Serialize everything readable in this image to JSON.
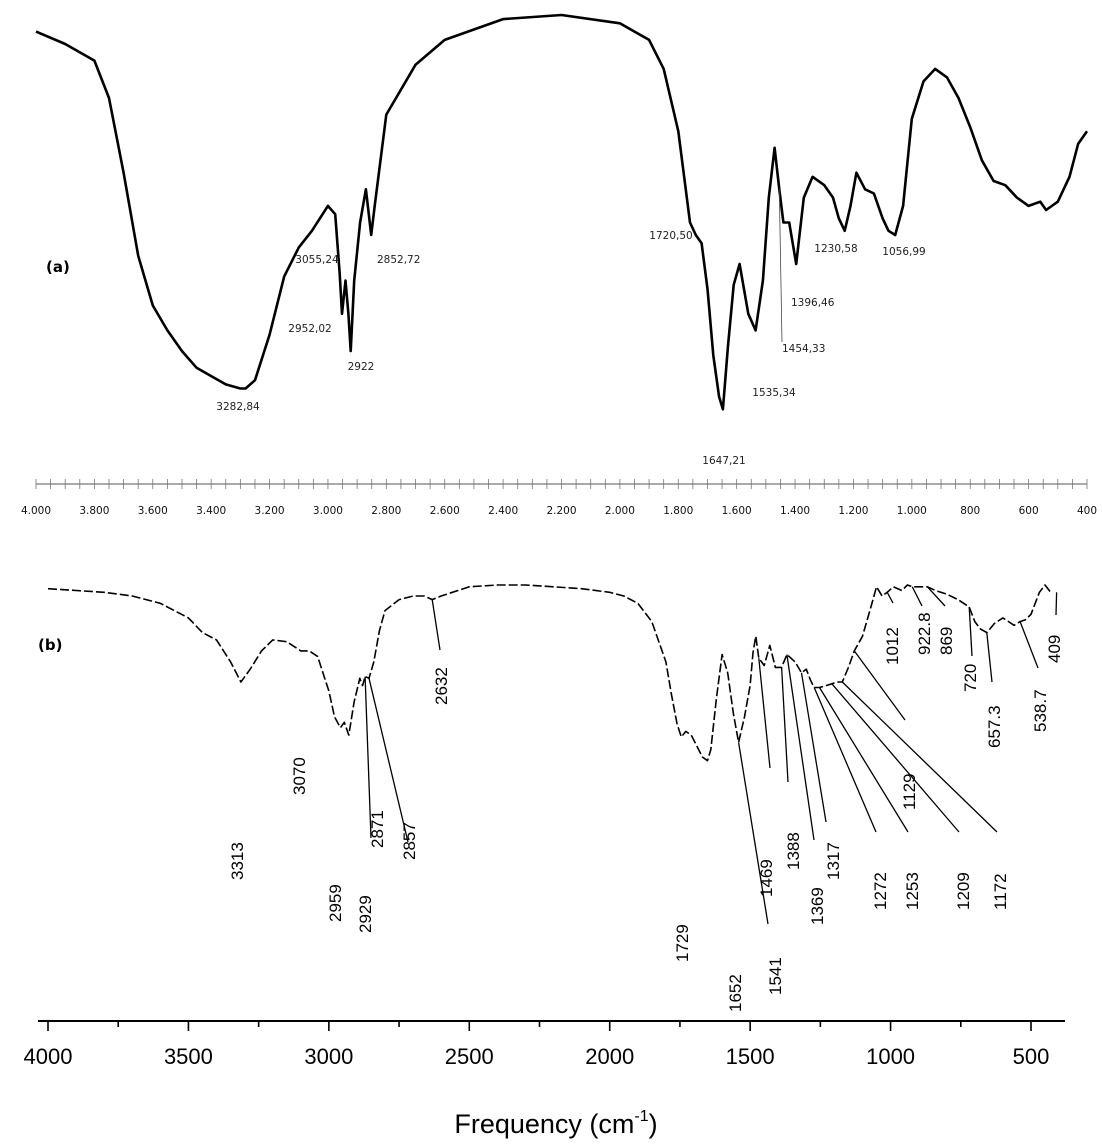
{
  "chart_data": [
    {
      "id": "a",
      "type": "line",
      "panel_label": "(a)",
      "xlim": [
        4000,
        400
      ],
      "x_ticks": [
        4000,
        3800,
        3600,
        3400,
        3200,
        3000,
        2800,
        2600,
        2400,
        2200,
        2000,
        1800,
        1600,
        1400,
        1200,
        1000,
        800,
        600,
        400
      ],
      "x_tick_labels": [
        "4.000",
        "3.800",
        "3.600",
        "3.400",
        "3.200",
        "3.000",
        "2.800",
        "2.600",
        "2.400",
        "2.200",
        "2.000",
        "1.800",
        "1.600",
        "1.400",
        "1.200",
        "1.000",
        "800",
        "600",
        "400"
      ],
      "y_scale": "relative transmittance (0-100, no axis shown)",
      "series": [
        {
          "x": [
            4000,
            3900,
            3800,
            3750,
            3700,
            3650,
            3600,
            3550,
            3500,
            3450,
            3400,
            3350,
            3300,
            3282,
            3250,
            3200,
            3150,
            3100,
            3055,
            3000,
            2975,
            2960,
            2952,
            2940,
            2930,
            2922,
            2910,
            2890,
            2870,
            2860,
            2852,
            2840,
            2800,
            2700,
            2600,
            2400,
            2200,
            2000,
            1900,
            1850,
            1800,
            1760,
            1740,
            1730,
            1720,
            1700,
            1680,
            1660,
            1647,
            1630,
            1610,
            1590,
            1560,
            1535,
            1510,
            1490,
            1470,
            1454,
            1440,
            1420,
            1396,
            1370,
            1340,
            1300,
            1270,
            1250,
            1230,
            1210,
            1190,
            1160,
            1130,
            1100,
            1080,
            1057,
            1030,
            1000,
            960,
            920,
            880,
            840,
            800,
            760,
            720,
            680,
            640,
            600,
            560,
            540,
            500,
            460,
            430,
            400
          ],
          "y": [
            96,
            93,
            89,
            80,
            62,
            42,
            30,
            24,
            19,
            15,
            13,
            11,
            10,
            10,
            12,
            23,
            37,
            44,
            48,
            54,
            52,
            38,
            28,
            36,
            28,
            19,
            36,
            50,
            58,
            52,
            47,
            54,
            76,
            88,
            94,
            99,
            100,
            98,
            94,
            87,
            72,
            50,
            47,
            46,
            45,
            34,
            18,
            8,
            5,
            20,
            35,
            40,
            28,
            24,
            36,
            56,
            68,
            58,
            50,
            50,
            40,
            56,
            61,
            59,
            56,
            51,
            48,
            54,
            62,
            58,
            57,
            51,
            48,
            47,
            54,
            75,
            84,
            87,
            85,
            80,
            73,
            65,
            60,
            59,
            56,
            54,
            55,
            53,
            55,
            61,
            69,
            72
          ]
        }
      ],
      "annotations": [
        {
          "text": "3282,84",
          "x": 3282
        },
        {
          "text": "3055,24",
          "x": 3055
        },
        {
          "text": "2952,02",
          "x": 2952
        },
        {
          "text": "2922",
          "x": 2922
        },
        {
          "text": "2852,72",
          "x": 2852
        },
        {
          "text": "1720,50",
          "x": 1720
        },
        {
          "text": "1647,21",
          "x": 1647
        },
        {
          "text": "1535,34",
          "x": 1535
        },
        {
          "text": "1454,33",
          "x": 1454
        },
        {
          "text": "1396,46",
          "x": 1396
        },
        {
          "text": "1230,58",
          "x": 1230
        },
        {
          "text": "1056,99",
          "x": 1057
        }
      ]
    },
    {
      "id": "b",
      "type": "line",
      "panel_label": "(b)",
      "xlabel_main": "Frequency (cm",
      "xlabel_sup": "-1",
      "xlabel_end": ")",
      "xlim": [
        4000,
        430
      ],
      "x_ticks": [
        4000,
        3500,
        3000,
        2500,
        2000,
        1500,
        1000,
        500
      ],
      "x_tick_labels": [
        "4000",
        "3500",
        "3000",
        "2500",
        "2000",
        "1500",
        "1000",
        "500"
      ],
      "y_scale": "relative transmittance (0-100, no axis shown)",
      "series": [
        {
          "x": [
            4000,
            3900,
            3800,
            3700,
            3600,
            3500,
            3450,
            3400,
            3350,
            3313,
            3280,
            3240,
            3200,
            3150,
            3100,
            3070,
            3040,
            3000,
            2980,
            2959,
            2945,
            2929,
            2910,
            2890,
            2880,
            2871,
            2857,
            2840,
            2820,
            2800,
            2750,
            2700,
            2660,
            2632,
            2600,
            2500,
            2400,
            2300,
            2200,
            2100,
            2000,
            1950,
            1900,
            1850,
            1800,
            1780,
            1760,
            1745,
            1729,
            1710,
            1690,
            1670,
            1652,
            1640,
            1620,
            1600,
            1580,
            1560,
            1541,
            1520,
            1500,
            1490,
            1480,
            1469,
            1450,
            1430,
            1410,
            1388,
            1369,
            1340,
            1317,
            1300,
            1285,
            1272,
            1253,
            1230,
            1209,
            1190,
            1172,
            1150,
            1129,
            1100,
            1070,
            1050,
            1030,
            1012,
            990,
            960,
            940,
            922.8,
            900,
            869,
            840,
            800,
            760,
            720,
            700,
            680,
            657.3,
            630,
            600,
            560,
            538.7,
            520,
            500,
            470,
            450,
            430
          ],
          "y": [
            98,
            97,
            96,
            94,
            90,
            82,
            74,
            70,
            58,
            47,
            54,
            64,
            70,
            69,
            64,
            64,
            61,
            42,
            28,
            22,
            25,
            18,
            36,
            49,
            45,
            50,
            49,
            58,
            75,
            86,
            92,
            94,
            94,
            92,
            94,
            99,
            100,
            100,
            99,
            98,
            96,
            94,
            90,
            80,
            58,
            40,
            24,
            17,
            20,
            18,
            12,
            6,
            4,
            10,
            38,
            62,
            52,
            30,
            14,
            28,
            45,
            63,
            72,
            60,
            56,
            67,
            55,
            55,
            62,
            58,
            52,
            54,
            48,
            44,
            44,
            45,
            46,
            47,
            47,
            55,
            64,
            72,
            88,
            99,
            94,
            96,
            99,
            97,
            100,
            99,
            99,
            99,
            97,
            95,
            92,
            88,
            80,
            76,
            74,
            79,
            82,
            78,
            80,
            81,
            84,
            96,
            100,
            96
          ]
        }
      ],
      "annotations": [
        {
          "text": "3313",
          "x": 3313
        },
        {
          "text": "3070",
          "x": 3070
        },
        {
          "text": "2959",
          "x": 2959
        },
        {
          "text": "2929",
          "x": 2929
        },
        {
          "text": "2871",
          "x": 2871
        },
        {
          "text": "2857",
          "x": 2857
        },
        {
          "text": "2632",
          "x": 2632
        },
        {
          "text": "1729",
          "x": 1729
        },
        {
          "text": "1652",
          "x": 1652
        },
        {
          "text": "1541",
          "x": 1541
        },
        {
          "text": "1469",
          "x": 1469
        },
        {
          "text": "1388",
          "x": 1388
        },
        {
          "text": "1369",
          "x": 1369
        },
        {
          "text": "1317",
          "x": 1317
        },
        {
          "text": "1272",
          "x": 1272
        },
        {
          "text": "1253",
          "x": 1253
        },
        {
          "text": "1209",
          "x": 1209
        },
        {
          "text": "1172",
          "x": 1172
        },
        {
          "text": "1129",
          "x": 1129
        },
        {
          "text": "1012",
          "x": 1012
        },
        {
          "text": "922.8",
          "x": 922.8
        },
        {
          "text": "869",
          "x": 869
        },
        {
          "text": "720",
          "x": 720
        },
        {
          "text": "657.3",
          "x": 657.3
        },
        {
          "text": "538.7",
          "x": 538.7
        },
        {
          "text": "409",
          "x": 409
        }
      ]
    }
  ]
}
